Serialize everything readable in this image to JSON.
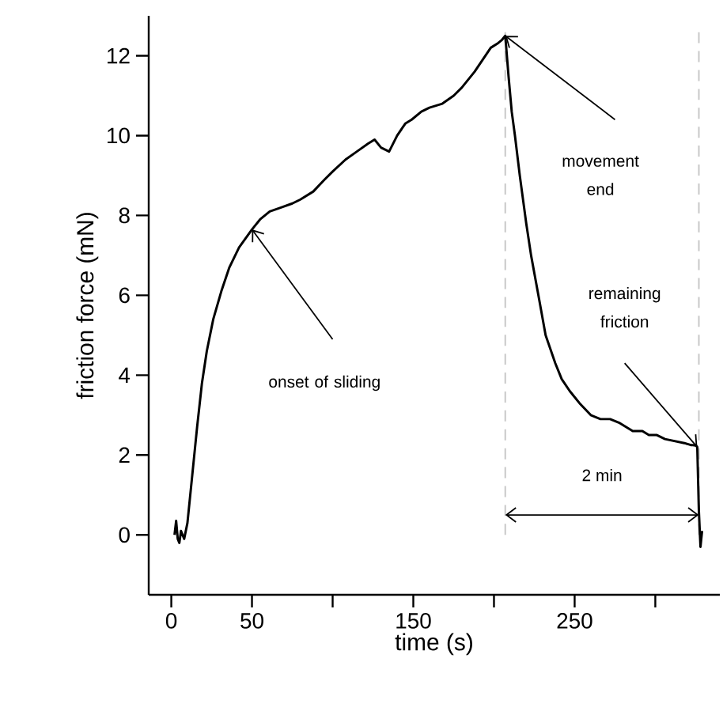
{
  "chart_data": {
    "type": "line",
    "xlabel": "time (s)",
    "ylabel": "friction force (mN)",
    "x": [
      2,
      3,
      4,
      5,
      6,
      8,
      10,
      13,
      16,
      19,
      22,
      26,
      31,
      36,
      42,
      50,
      55,
      61,
      68,
      75,
      80,
      88,
      95,
      100,
      108,
      115,
      122,
      126,
      130,
      135,
      140,
      145,
      149,
      155,
      160,
      168,
      175,
      180,
      188,
      193,
      198,
      202,
      205,
      207,
      209,
      211,
      213,
      216,
      220,
      223,
      228,
      232,
      238,
      242,
      247,
      253,
      260,
      266,
      272,
      278,
      286,
      292,
      296,
      301,
      306,
      312,
      318,
      322,
      325,
      326,
      327,
      328,
      329
    ],
    "series": [
      {
        "color": "#000000",
        "values": [
          0.0,
          0.35,
          -0.1,
          -0.2,
          0.1,
          -0.1,
          0.3,
          1.5,
          2.7,
          3.8,
          4.6,
          5.4,
          6.1,
          6.7,
          7.2,
          7.65,
          7.9,
          8.1,
          8.2,
          8.3,
          8.4,
          8.6,
          8.9,
          9.1,
          9.4,
          9.6,
          9.8,
          9.9,
          9.7,
          9.6,
          10.0,
          10.3,
          10.4,
          10.6,
          10.7,
          10.8,
          11.0,
          11.2,
          11.6,
          11.9,
          12.2,
          12.3,
          12.4,
          12.5,
          11.5,
          10.6,
          10.0,
          9.0,
          7.8,
          7.0,
          5.9,
          5.0,
          4.3,
          3.9,
          3.6,
          3.3,
          3.0,
          2.9,
          2.9,
          2.8,
          2.6,
          2.6,
          2.5,
          2.5,
          2.4,
          2.35,
          2.3,
          2.25,
          2.25,
          2.2,
          0.6,
          -0.3,
          0.1
        ]
      }
    ],
    "xlim": [
      -14,
      340
    ],
    "ylim": [
      -1.5,
      13
    ],
    "xticks": [
      0,
      50,
      {
        "value": 100,
        "label": null
      },
      150,
      {
        "value": 200,
        "label": null
      },
      250,
      {
        "value": 300,
        "label": null
      }
    ],
    "yticks": [
      0,
      2,
      4,
      6,
      8,
      10,
      12
    ],
    "ref_lines": [
      {
        "axis": "x",
        "value": 207,
        "color": "#c8c8c8",
        "line_style": "dashed"
      },
      {
        "axis": "x",
        "value": 327,
        "color": "#c8c8c8",
        "line_style": "dashed"
      }
    ],
    "annotations": [
      "onset of sliding",
      "movement end",
      "remaining friction",
      "2 min"
    ],
    "marker": "none",
    "line_style": "solid"
  }
}
